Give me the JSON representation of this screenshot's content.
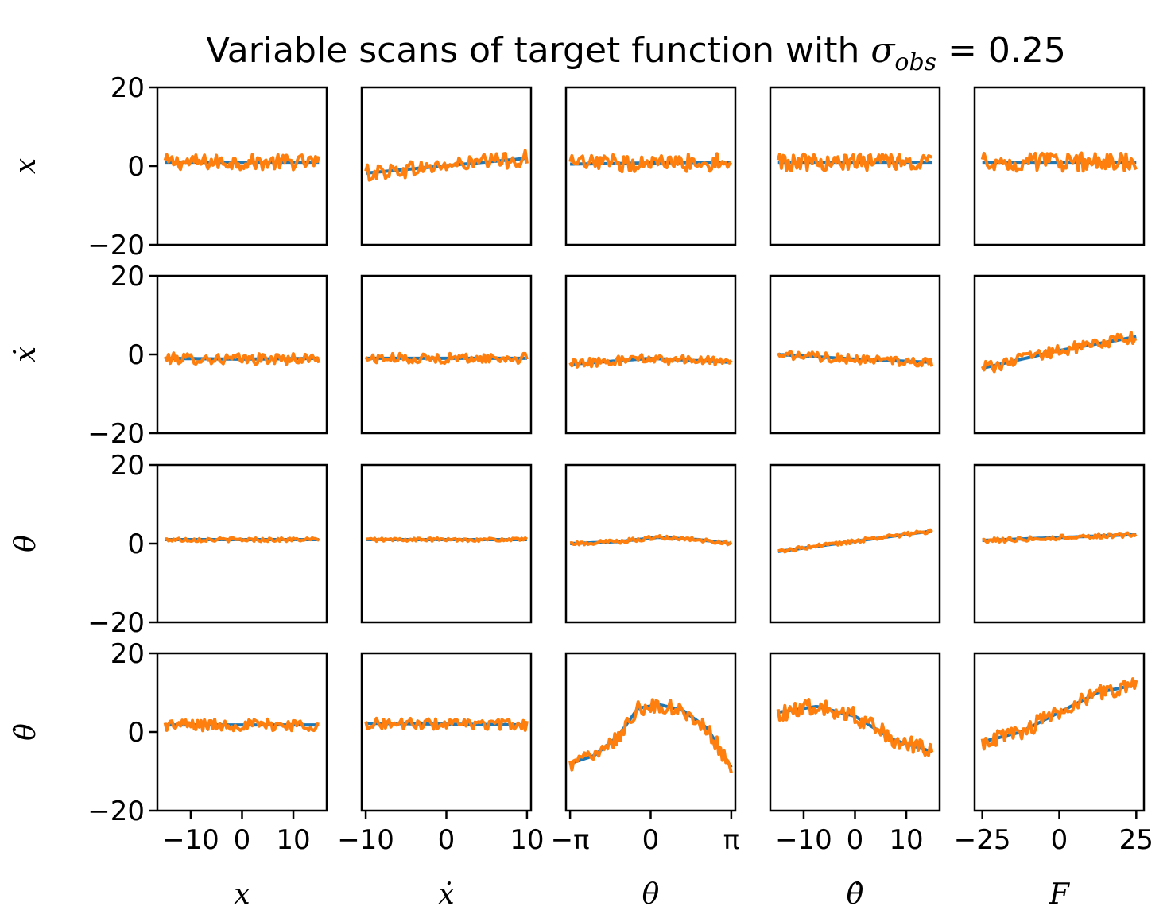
{
  "chart_data": {
    "type": "line",
    "title_prefix": "Variable scans of target function with ",
    "title_symbol": "σ",
    "title_subscript": "obs",
    "title_suffix": " = 0.25",
    "row_labels": [
      "x",
      "ẋ",
      "θ",
      "θ̇"
    ],
    "col_labels": [
      "x",
      "ẋ",
      "θ",
      "θ̇",
      "F"
    ],
    "ylim": [
      -20,
      20
    ],
    "yticks": [
      "20",
      "0",
      "−20"
    ],
    "columns": [
      {
        "name": "x",
        "xlim": [
          -16.5,
          16.5
        ],
        "xticks": [
          {
            "v": -10,
            "label": "−10"
          },
          {
            "v": 0,
            "label": "0"
          },
          {
            "v": 10,
            "label": "10"
          }
        ],
        "range": [
          -15,
          15
        ]
      },
      {
        "name": "ẋ",
        "xlim": [
          -10.5,
          10.5
        ],
        "xticks": [
          {
            "v": -10,
            "label": "−10"
          },
          {
            "v": 0,
            "label": "0"
          },
          {
            "v": 10,
            "label": "10"
          }
        ],
        "range": [
          -10,
          10
        ]
      },
      {
        "name": "θ",
        "xlim": [
          -3.3,
          3.3
        ],
        "xticks": [
          {
            "v": -3.14159,
            "label": "−π"
          },
          {
            "v": 0,
            "label": "0"
          },
          {
            "v": 3.14159,
            "label": "π"
          }
        ],
        "range": [
          -3.14159,
          3.14159
        ]
      },
      {
        "name": "θ̇",
        "xlim": [
          -16.5,
          16.5
        ],
        "xticks": [
          {
            "v": -10,
            "label": "−10"
          },
          {
            "v": 0,
            "label": "0"
          },
          {
            "v": 10,
            "label": "10"
          }
        ],
        "range": [
          -15,
          15
        ]
      },
      {
        "name": "F",
        "xlim": [
          -27.5,
          27.5
        ],
        "xticks": [
          {
            "v": -25,
            "label": "−25"
          },
          {
            "v": 0,
            "label": "0"
          },
          {
            "v": 25,
            "label": "25"
          }
        ],
        "range": [
          -25,
          25
        ]
      }
    ],
    "series": [
      {
        "color": "#1f77b4",
        "stroke_width": 4
      },
      {
        "color": "#ff7f0e",
        "stroke_width": 4
      }
    ],
    "panels": [
      [
        {
          "true": [
            [
              0,
              1
            ],
            [
              1,
              1
            ]
          ],
          "noise": 1.4
        },
        {
          "true": [
            [
              0,
              -1.8
            ],
            [
              1,
              2
            ]
          ],
          "noise": 1.5
        },
        {
          "true": [
            [
              0,
              0.5
            ],
            [
              0.5,
              0.8
            ],
            [
              1,
              1
            ]
          ],
          "noise": 1.6
        },
        {
          "true": [
            [
              0,
              1
            ],
            [
              1,
              1
            ]
          ],
          "noise": 1.5
        },
        {
          "true": [
            [
              0,
              1
            ],
            [
              1,
              1
            ]
          ],
          "noise": 1.7
        }
      ],
      [
        {
          "true": [
            [
              0,
              -1
            ],
            [
              0.5,
              -1.2
            ],
            [
              1,
              -1
            ]
          ],
          "noise": 1.0
        },
        {
          "true": [
            [
              0,
              -1
            ],
            [
              1,
              -1
            ]
          ],
          "noise": 0.9
        },
        {
          "true": [
            [
              0,
              -2.5
            ],
            [
              0.5,
              -1
            ],
            [
              1,
              -2
            ]
          ],
          "noise": 0.9
        },
        {
          "true": [
            [
              0,
              0
            ],
            [
              0.5,
              -1.2
            ],
            [
              1,
              -2
            ]
          ],
          "noise": 0.8
        },
        {
          "true": [
            [
              0,
              -3.5
            ],
            [
              0.5,
              1
            ],
            [
              1,
              4.5
            ]
          ],
          "noise": 1.1
        }
      ],
      [
        {
          "true": [
            [
              0,
              1
            ],
            [
              1,
              1
            ]
          ],
          "noise": 0.35
        },
        {
          "true": [
            [
              0,
              1
            ],
            [
              1,
              1
            ]
          ],
          "noise": 0.3
        },
        {
          "true": [
            [
              0,
              0
            ],
            [
              0.3,
              0.5
            ],
            [
              0.55,
              1.6
            ],
            [
              0.8,
              1
            ],
            [
              1,
              0
            ]
          ],
          "noise": 0.35
        },
        {
          "true": [
            [
              0,
              -2
            ],
            [
              1,
              3.2
            ]
          ],
          "noise": 0.35
        },
        {
          "true": [
            [
              0,
              0.8
            ],
            [
              1,
              2.3
            ]
          ],
          "noise": 0.45
        }
      ],
      [
        {
          "true": [
            [
              0,
              1.8
            ],
            [
              1,
              1.8
            ]
          ],
          "noise": 1.1
        },
        {
          "true": [
            [
              0,
              2.2
            ],
            [
              1,
              1.8
            ]
          ],
          "noise": 1.0
        },
        {
          "true": [
            [
              0,
              -8
            ],
            [
              0.15,
              -6
            ],
            [
              0.3,
              -1
            ],
            [
              0.42,
              6
            ],
            [
              0.55,
              7
            ],
            [
              0.7,
              5.5
            ],
            [
              0.85,
              1
            ],
            [
              1,
              -9
            ]
          ],
          "noise": 1.4
        },
        {
          "true": [
            [
              0,
              5
            ],
            [
              0.25,
              6.5
            ],
            [
              0.5,
              4
            ],
            [
              0.75,
              -2
            ],
            [
              1,
              -5
            ]
          ],
          "noise": 1.6
        },
        {
          "true": [
            [
              0,
              -2.5
            ],
            [
              0.25,
              0
            ],
            [
              0.5,
              5
            ],
            [
              0.75,
              10
            ],
            [
              1,
              12
            ]
          ],
          "noise": 1.5
        }
      ]
    ]
  }
}
